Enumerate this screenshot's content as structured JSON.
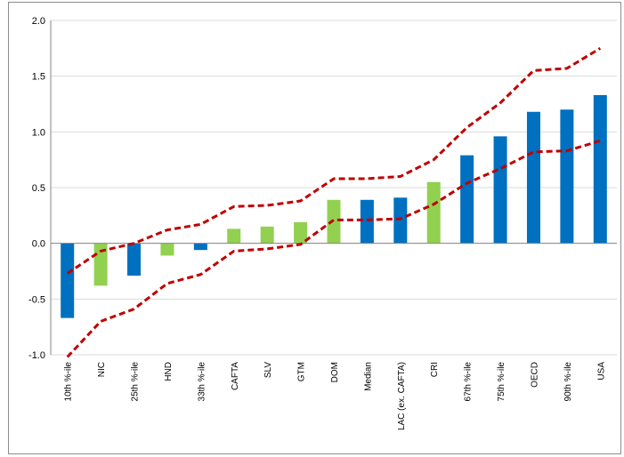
{
  "chart_data": {
    "type": "bar",
    "title": "",
    "xlabel": "",
    "ylabel": "",
    "ylim": [
      -1.0,
      2.0
    ],
    "yticks": [
      "2.0",
      "1.5",
      "1.0",
      "0.5",
      "0.0",
      "-0.5",
      "-1.0"
    ],
    "grid": "horizontal",
    "legend": "none",
    "categories": [
      "10th %-ile",
      "NIC",
      "25th %-ile",
      "HND",
      "33th %-ile",
      "CAFTA",
      "SLV",
      "GTM",
      "DOM",
      "Median",
      "LAC (ex. CAFTA)",
      "CRI",
      "67th %-ile",
      "75th %-ile",
      "OECD",
      "90th %-ile",
      "USA"
    ],
    "values": [
      -0.67,
      -0.38,
      -0.29,
      -0.11,
      -0.06,
      0.13,
      0.15,
      0.19,
      0.39,
      0.39,
      0.41,
      0.55,
      0.79,
      0.96,
      1.18,
      1.2,
      1.33
    ],
    "bar_colors": [
      "#0070C0",
      "#92D050",
      "#0070C0",
      "#92D050",
      "#0070C0",
      "#92D050",
      "#92D050",
      "#92D050",
      "#92D050",
      "#0070C0",
      "#0070C0",
      "#92D050",
      "#0070C0",
      "#0070C0",
      "#0070C0",
      "#0070C0",
      "#0070C0"
    ],
    "series": [
      {
        "values": [
          -1.02,
          -0.7,
          -0.59,
          -0.36,
          -0.28,
          -0.07,
          -0.05,
          -0.01,
          0.21,
          0.21,
          0.22,
          0.35,
          0.54,
          0.67,
          0.82,
          0.83,
          0.92
        ]
      },
      {
        "values": [
          -0.27,
          -0.07,
          0.0,
          0.12,
          0.17,
          0.33,
          0.34,
          0.38,
          0.58,
          0.58,
          0.6,
          0.75,
          1.04,
          1.26,
          1.55,
          1.57,
          1.75
        ]
      }
    ],
    "colors": {
      "blue": "#0070C0",
      "green": "#92D050",
      "band_line": "#C00000",
      "grid": "#d9d9d9",
      "axis": "#868686"
    }
  }
}
